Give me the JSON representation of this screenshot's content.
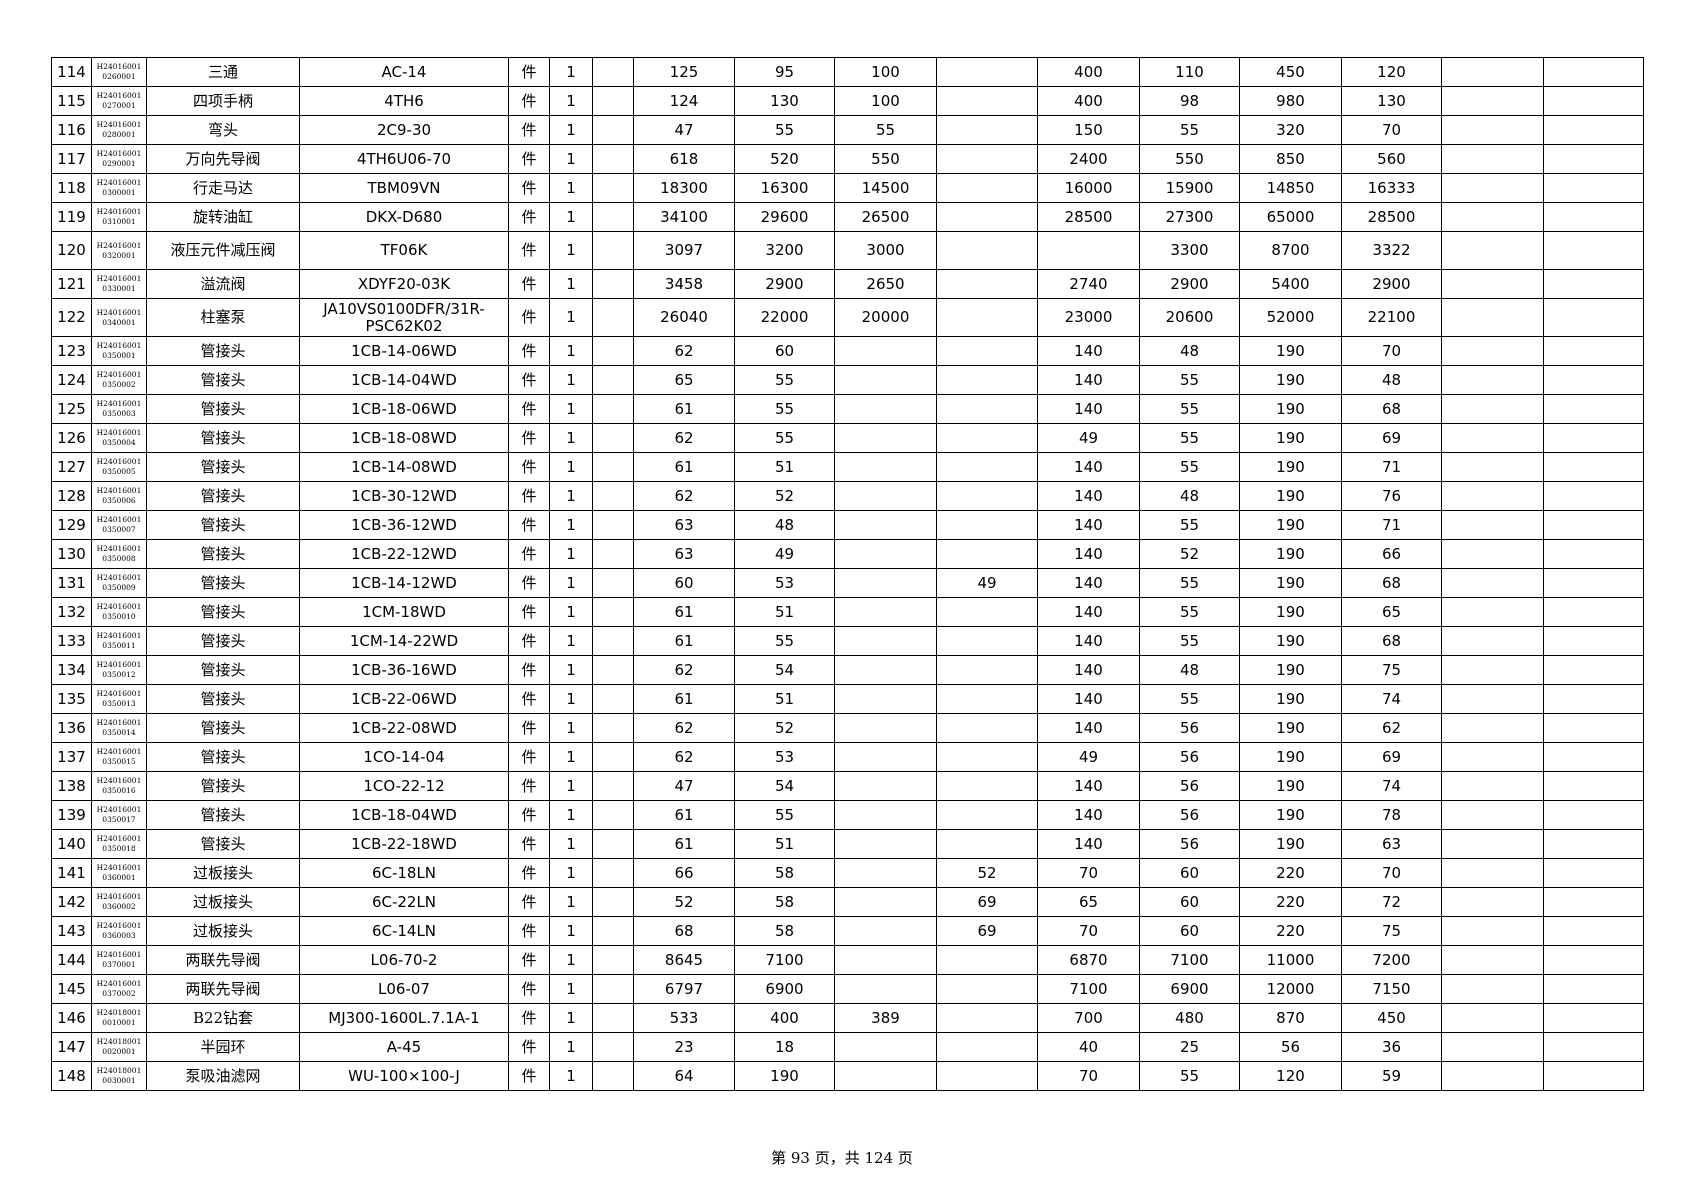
{
  "table": {
    "rows": [
      [
        "114",
        [
          "H24016001",
          "0260001"
        ],
        "三通",
        "AC-14",
        "件",
        "1",
        null,
        "125",
        "95",
        "100",
        null,
        "400",
        "110",
        "450",
        "120",
        null,
        null
      ],
      [
        "115",
        [
          "H24016001",
          "0270001"
        ],
        "四项手柄",
        "4TH6",
        "件",
        "1",
        null,
        "124",
        "130",
        "100",
        null,
        "400",
        "98",
        "980",
        "130",
        null,
        null
      ],
      [
        "116",
        [
          "H24016001",
          "0280001"
        ],
        "弯头",
        "2C9-30",
        "件",
        "1",
        null,
        "47",
        "55",
        "55",
        null,
        "150",
        "55",
        "320",
        "70",
        null,
        null
      ],
      [
        "117",
        [
          "H24016001",
          "0290001"
        ],
        "万向先导阀",
        "4TH6U06-70",
        "件",
        "1",
        null,
        "618",
        "520",
        "550",
        null,
        "2400",
        "550",
        "850",
        "560",
        null,
        null
      ],
      [
        "118",
        [
          "H24016001",
          "0300001"
        ],
        "行走马达",
        "TBM09VN",
        "件",
        "1",
        null,
        "18300",
        "16300",
        "14500",
        null,
        "16000",
        "15900",
        "14850",
        "16333",
        null,
        null
      ],
      [
        "119",
        [
          "H24016001",
          "0310001"
        ],
        "旋转油缸",
        "DKX-D680",
        "件",
        "1",
        null,
        "34100",
        "29600",
        "26500",
        null,
        "28500",
        "27300",
        "65000",
        "28500",
        null,
        null
      ],
      [
        "120",
        [
          "H24016001",
          "0320001"
        ],
        "液压元件减压阀",
        "TF06K",
        "件",
        "1",
        null,
        "3097",
        "3200",
        "3000",
        null,
        null,
        "3300",
        "8700",
        "3322",
        null,
        null
      ],
      [
        "121",
        [
          "H24016001",
          "0330001"
        ],
        "溢流阀",
        "XDYF20-03K",
        "件",
        "1",
        null,
        "3458",
        "2900",
        "2650",
        null,
        "2740",
        "2900",
        "5400",
        "2900",
        null,
        null
      ],
      [
        "122",
        [
          "H24016001",
          "0340001"
        ],
        "柱塞泵",
        "JA10VS0100DFR/31R-PSC62K02",
        "件",
        "1",
        null,
        "26040",
        "22000",
        "20000",
        null,
        "23000",
        "20600",
        "52000",
        "22100",
        null,
        null
      ],
      [
        "123",
        [
          "H24016001",
          "0350001"
        ],
        "管接头",
        "1CB-14-06WD",
        "件",
        "1",
        null,
        "62",
        "60",
        null,
        null,
        "140",
        "48",
        "190",
        "70",
        null,
        null
      ],
      [
        "124",
        [
          "H24016001",
          "0350002"
        ],
        "管接头",
        "1CB-14-04WD",
        "件",
        "1",
        null,
        "65",
        "55",
        null,
        null,
        "140",
        "55",
        "190",
        "48",
        null,
        null
      ],
      [
        "125",
        [
          "H24016001",
          "0350003"
        ],
        "管接头",
        "1CB-18-06WD",
        "件",
        "1",
        null,
        "61",
        "55",
        null,
        null,
        "140",
        "55",
        "190",
        "68",
        null,
        null
      ],
      [
        "126",
        [
          "H24016001",
          "0350004"
        ],
        "管接头",
        "1CB-18-08WD",
        "件",
        "1",
        null,
        "62",
        "55",
        null,
        null,
        "49",
        "55",
        "190",
        "69",
        null,
        null
      ],
      [
        "127",
        [
          "H24016001",
          "0350005"
        ],
        "管接头",
        "1CB-14-08WD",
        "件",
        "1",
        null,
        "61",
        "51",
        null,
        null,
        "140",
        "55",
        "190",
        "71",
        null,
        null
      ],
      [
        "128",
        [
          "H24016001",
          "0350006"
        ],
        "管接头",
        "1CB-30-12WD",
        "件",
        "1",
        null,
        "62",
        "52",
        null,
        null,
        "140",
        "48",
        "190",
        "76",
        null,
        null
      ],
      [
        "129",
        [
          "H24016001",
          "0350007"
        ],
        "管接头",
        "1CB-36-12WD",
        "件",
        "1",
        null,
        "63",
        "48",
        null,
        null,
        "140",
        "55",
        "190",
        "71",
        null,
        null
      ],
      [
        "130",
        [
          "H24016001",
          "0350008"
        ],
        "管接头",
        "1CB-22-12WD",
        "件",
        "1",
        null,
        "63",
        "49",
        null,
        null,
        "140",
        "52",
        "190",
        "66",
        null,
        null
      ],
      [
        "131",
        [
          "H24016001",
          "0350009"
        ],
        "管接头",
        "1CB-14-12WD",
        "件",
        "1",
        null,
        "60",
        "53",
        null,
        "49",
        "140",
        "55",
        "190",
        "68",
        null,
        null
      ],
      [
        "132",
        [
          "H24016001",
          "0350010"
        ],
        "管接头",
        "1CM-18WD",
        "件",
        "1",
        null,
        "61",
        "51",
        null,
        null,
        "140",
        "55",
        "190",
        "65",
        null,
        null
      ],
      [
        "133",
        [
          "H24016001",
          "0350011"
        ],
        "管接头",
        "1CM-14-22WD",
        "件",
        "1",
        null,
        "61",
        "55",
        null,
        null,
        "140",
        "55",
        "190",
        "68",
        null,
        null
      ],
      [
        "134",
        [
          "H24016001",
          "0350012"
        ],
        "管接头",
        "1CB-36-16WD",
        "件",
        "1",
        null,
        "62",
        "54",
        null,
        null,
        "140",
        "48",
        "190",
        "75",
        null,
        null
      ],
      [
        "135",
        [
          "H24016001",
          "0350013"
        ],
        "管接头",
        "1CB-22-06WD",
        "件",
        "1",
        null,
        "61",
        "51",
        null,
        null,
        "140",
        "55",
        "190",
        "74",
        null,
        null
      ],
      [
        "136",
        [
          "H24016001",
          "0350014"
        ],
        "管接头",
        "1CB-22-08WD",
        "件",
        "1",
        null,
        "62",
        "52",
        null,
        null,
        "140",
        "56",
        "190",
        "62",
        null,
        null
      ],
      [
        "137",
        [
          "H24016001",
          "0350015"
        ],
        "管接头",
        "1CO-14-04",
        "件",
        "1",
        null,
        "62",
        "53",
        null,
        null,
        "49",
        "56",
        "190",
        "69",
        null,
        null
      ],
      [
        "138",
        [
          "H24016001",
          "0350016"
        ],
        "管接头",
        "1CO-22-12",
        "件",
        "1",
        null,
        "47",
        "54",
        null,
        null,
        "140",
        "56",
        "190",
        "74",
        null,
        null
      ],
      [
        "139",
        [
          "H24016001",
          "0350017"
        ],
        "管接头",
        "1CB-18-04WD",
        "件",
        "1",
        null,
        "61",
        "55",
        null,
        null,
        "140",
        "56",
        "190",
        "78",
        null,
        null
      ],
      [
        "140",
        [
          "H24016001",
          "0350018"
        ],
        "管接头",
        "1CB-22-18WD",
        "件",
        "1",
        null,
        "61",
        "51",
        null,
        null,
        "140",
        "56",
        "190",
        "63",
        null,
        null
      ],
      [
        "141",
        [
          "H24016001",
          "0360001"
        ],
        "过板接头",
        "6C-18LN",
        "件",
        "1",
        null,
        "66",
        "58",
        null,
        "52",
        "70",
        "60",
        "220",
        "70",
        null,
        null
      ],
      [
        "142",
        [
          "H24016001",
          "0360002"
        ],
        "过板接头",
        "6C-22LN",
        "件",
        "1",
        null,
        "52",
        "58",
        null,
        "69",
        "65",
        "60",
        "220",
        "72",
        null,
        null
      ],
      [
        "143",
        [
          "H24016001",
          "0360003"
        ],
        "过板接头",
        "6C-14LN",
        "件",
        "1",
        null,
        "68",
        "58",
        null,
        "69",
        "70",
        "60",
        "220",
        "75",
        null,
        null
      ],
      [
        "144",
        [
          "H24016001",
          "0370001"
        ],
        "两联先导阀",
        "L06-70-2",
        "件",
        "1",
        null,
        "8645",
        "7100",
        null,
        null,
        "6870",
        "7100",
        "11000",
        "7200",
        null,
        null
      ],
      [
        "145",
        [
          "H24016001",
          "0370002"
        ],
        "两联先导阀",
        "L06-07",
        "件",
        "1",
        null,
        "6797",
        "6900",
        null,
        null,
        "7100",
        "6900",
        "12000",
        "7150",
        null,
        null
      ],
      [
        "146",
        [
          "H24018001",
          "0010001"
        ],
        "B22钻套",
        "MJ300-1600L.7.1A-1",
        "件",
        "1",
        null,
        "533",
        "400",
        "389",
        null,
        "700",
        "480",
        "870",
        "450",
        null,
        null
      ],
      [
        "147",
        [
          "H24018001",
          "0020001"
        ],
        "半园环",
        "A-45",
        "件",
        "1",
        null,
        "23",
        "18",
        null,
        null,
        "40",
        "25",
        "56",
        "36",
        null,
        null
      ],
      [
        "148",
        [
          "H24018001",
          "0030001"
        ],
        "泵吸油滤网",
        "WU-100×100-J",
        "件",
        "1",
        null,
        "64",
        "190",
        null,
        null,
        "70",
        "55",
        "120",
        "59",
        null,
        null
      ]
    ]
  },
  "footer": "第 93 页，共 124 页"
}
